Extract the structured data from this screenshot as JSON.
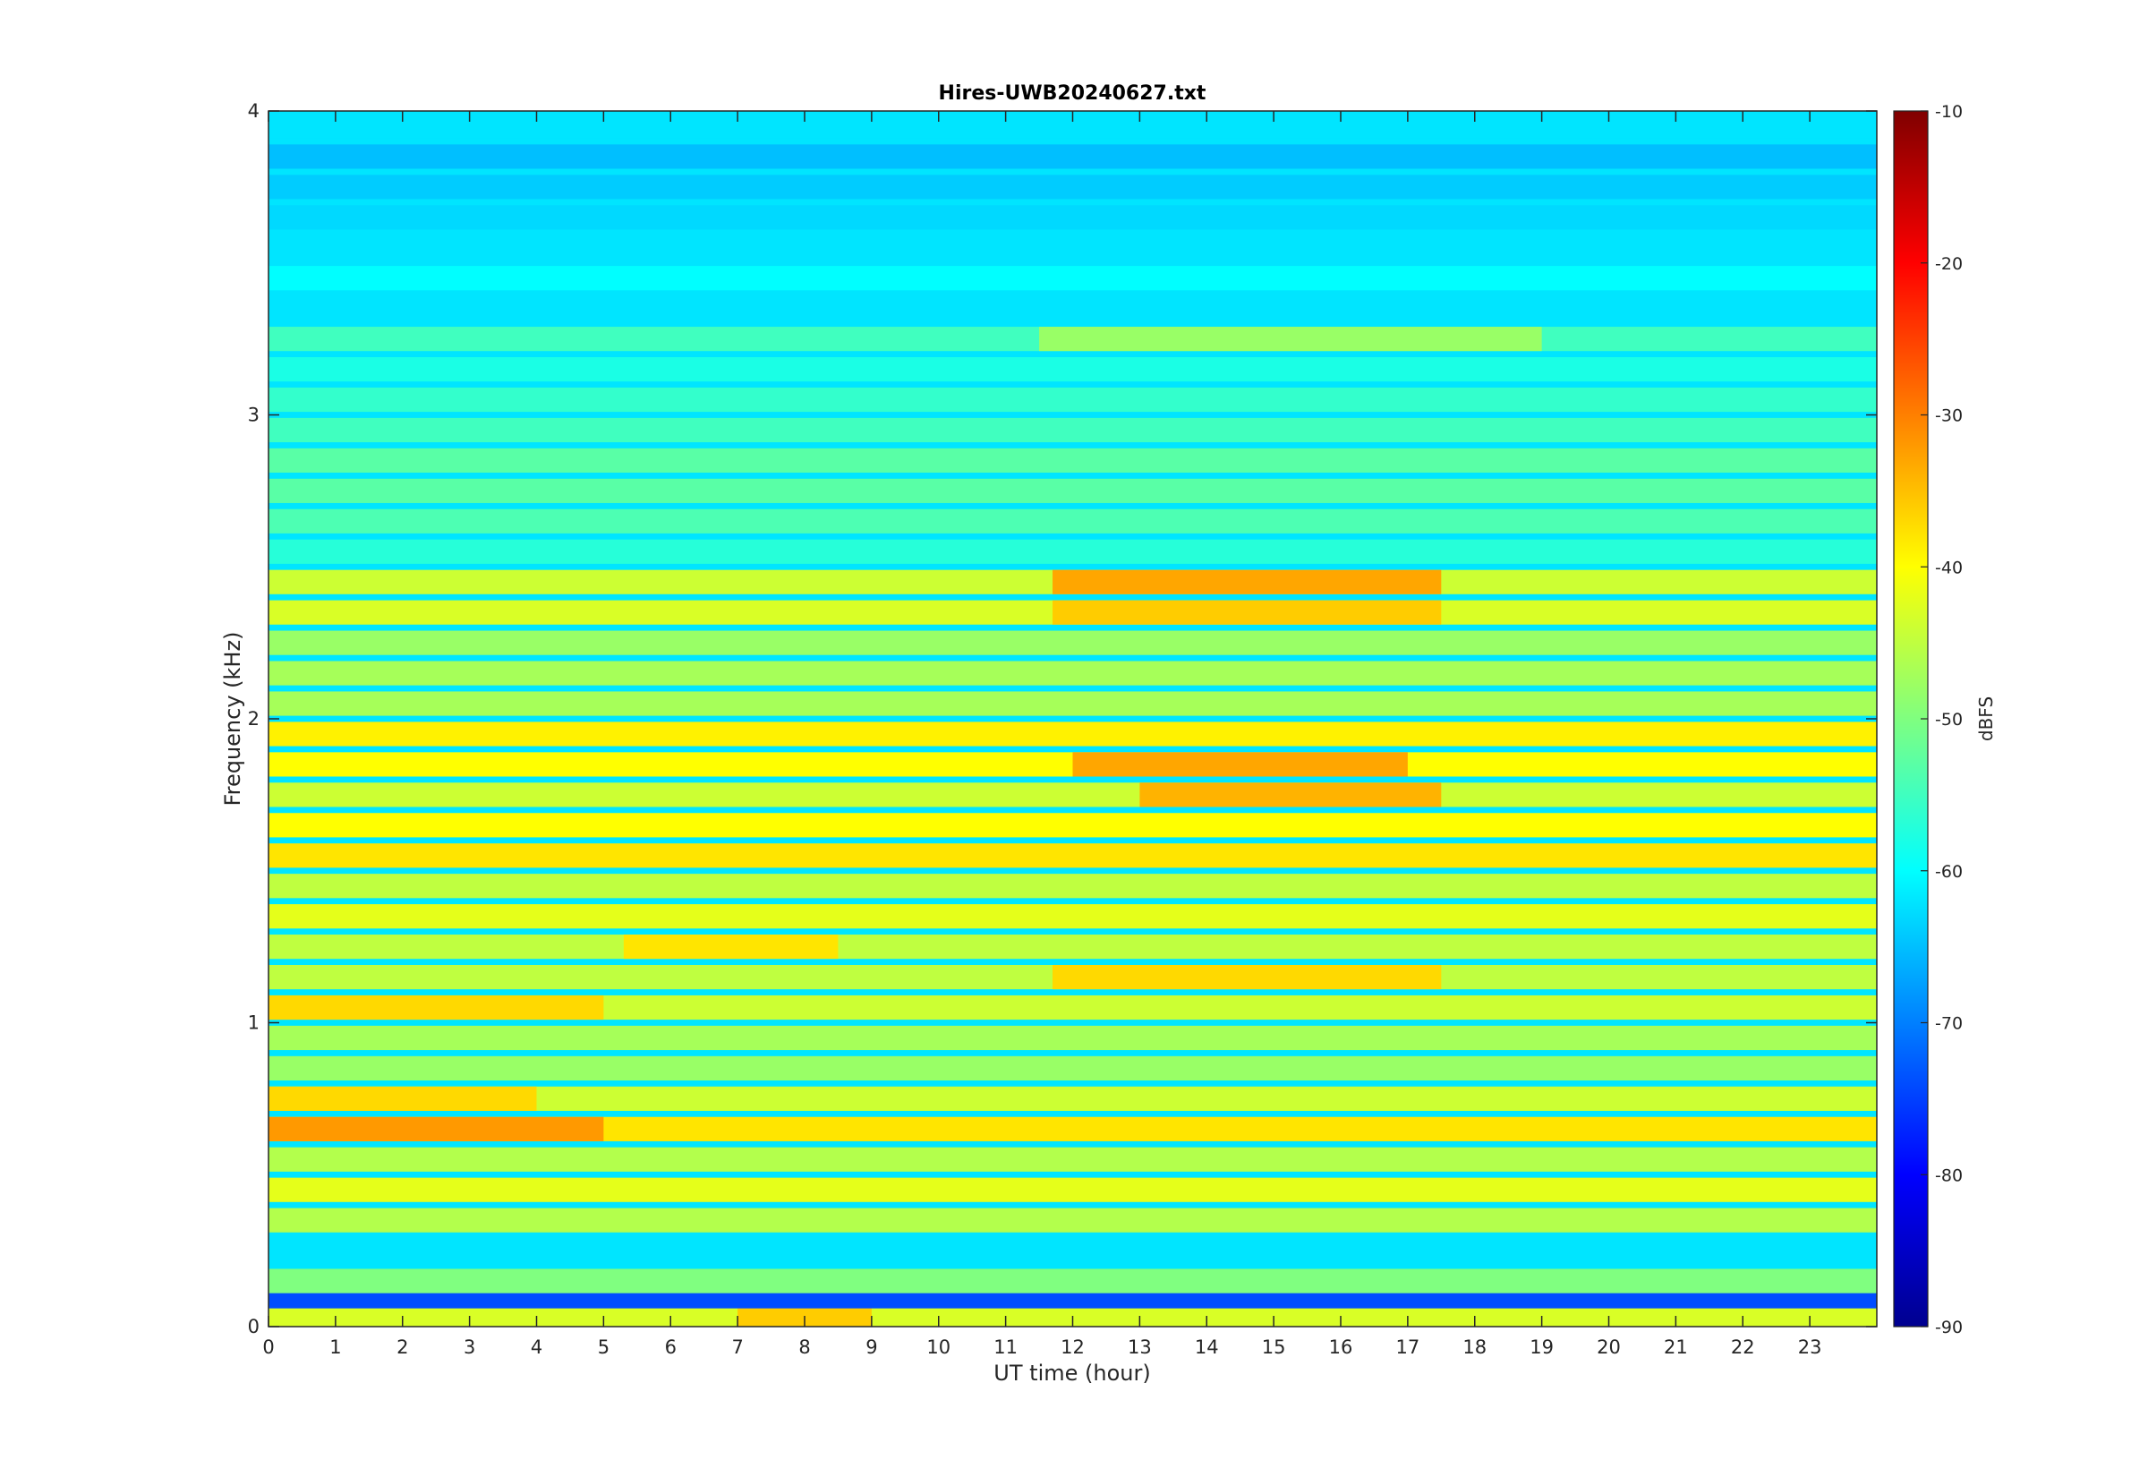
{
  "chart_data": {
    "type": "heatmap",
    "title": "Hires-UWB20240627.txt",
    "xlabel": "UT time (hour)",
    "ylabel": "Frequency (kHz)",
    "xlim": [
      0,
      24
    ],
    "ylim": [
      0,
      4
    ],
    "x_ticks": [
      "0",
      "1",
      "2",
      "3",
      "4",
      "5",
      "6",
      "7",
      "8",
      "9",
      "10",
      "11",
      "12",
      "13",
      "14",
      "15",
      "16",
      "17",
      "18",
      "19",
      "20",
      "21",
      "22",
      "23"
    ],
    "y_ticks": [
      "0",
      "1",
      "2",
      "3",
      "4"
    ],
    "colorbar": {
      "label": "dBFS",
      "range": [
        -90,
        -10
      ],
      "ticks": [
        "-10",
        "-20",
        "-30",
        "-40",
        "-50",
        "-60",
        "-70",
        "-80",
        "-90"
      ],
      "colormap": "jet"
    },
    "bands": [
      {
        "freq_khz": 0.04,
        "level_dbfs": -43,
        "segments": [
          {
            "t0": 7,
            "t1": 9,
            "level_dbfs": -36
          }
        ]
      },
      {
        "freq_khz": 0.1,
        "level_dbfs": -74
      },
      {
        "freq_khz": 0.15,
        "level_dbfs": -50
      },
      {
        "freq_khz": 0.35,
        "level_dbfs": -46
      },
      {
        "freq_khz": 0.45,
        "level_dbfs": -42
      },
      {
        "freq_khz": 0.55,
        "level_dbfs": -46
      },
      {
        "freq_khz": 0.65,
        "level_dbfs": -38,
        "segments": [
          {
            "t0": 0,
            "t1": 5,
            "level_dbfs": -32
          }
        ]
      },
      {
        "freq_khz": 0.75,
        "level_dbfs": -44,
        "segments": [
          {
            "t0": 0,
            "t1": 4,
            "level_dbfs": -37
          }
        ]
      },
      {
        "freq_khz": 0.85,
        "level_dbfs": -48
      },
      {
        "freq_khz": 0.95,
        "level_dbfs": -47
      },
      {
        "freq_khz": 1.05,
        "level_dbfs": -44,
        "segments": [
          {
            "t0": 0,
            "t1": 5,
            "level_dbfs": -37
          }
        ]
      },
      {
        "freq_khz": 1.15,
        "level_dbfs": -45,
        "segments": [
          {
            "t0": 11.7,
            "t1": 17.5,
            "level_dbfs": -37
          }
        ]
      },
      {
        "freq_khz": 1.25,
        "level_dbfs": -45,
        "segments": [
          {
            "t0": 5.3,
            "t1": 8.5,
            "level_dbfs": -38
          }
        ]
      },
      {
        "freq_khz": 1.35,
        "level_dbfs": -42
      },
      {
        "freq_khz": 1.45,
        "level_dbfs": -45
      },
      {
        "freq_khz": 1.55,
        "level_dbfs": -38
      },
      {
        "freq_khz": 1.65,
        "level_dbfs": -40
      },
      {
        "freq_khz": 1.75,
        "level_dbfs": -44,
        "segments": [
          {
            "t0": 13,
            "t1": 17.5,
            "level_dbfs": -34
          }
        ]
      },
      {
        "freq_khz": 1.85,
        "level_dbfs": -40,
        "segments": [
          {
            "t0": 12,
            "t1": 17,
            "level_dbfs": -33
          }
        ]
      },
      {
        "freq_khz": 1.95,
        "level_dbfs": -39
      },
      {
        "freq_khz": 2.05,
        "level_dbfs": -47
      },
      {
        "freq_khz": 2.15,
        "level_dbfs": -47
      },
      {
        "freq_khz": 2.25,
        "level_dbfs": -48
      },
      {
        "freq_khz": 2.35,
        "level_dbfs": -43,
        "segments": [
          {
            "t0": 11.7,
            "t1": 17.5,
            "level_dbfs": -36
          }
        ]
      },
      {
        "freq_khz": 2.45,
        "level_dbfs": -44,
        "segments": [
          {
            "t0": 11.7,
            "t1": 17.5,
            "level_dbfs": -33
          }
        ]
      },
      {
        "freq_khz": 2.55,
        "level_dbfs": -57
      },
      {
        "freq_khz": 2.65,
        "level_dbfs": -54
      },
      {
        "freq_khz": 2.75,
        "level_dbfs": -53
      },
      {
        "freq_khz": 2.85,
        "level_dbfs": -53
      },
      {
        "freq_khz": 2.95,
        "level_dbfs": -55
      },
      {
        "freq_khz": 3.05,
        "level_dbfs": -56
      },
      {
        "freq_khz": 3.15,
        "level_dbfs": -58
      },
      {
        "freq_khz": 3.25,
        "level_dbfs": -55,
        "segments": [
          {
            "t0": 11.5,
            "t1": 19,
            "level_dbfs": -48
          }
        ]
      },
      {
        "freq_khz": 3.35,
        "level_dbfs": -62
      },
      {
        "freq_khz": 3.45,
        "level_dbfs": -60
      },
      {
        "freq_khz": 3.55,
        "level_dbfs": -62
      },
      {
        "freq_khz": 3.65,
        "level_dbfs": -63
      },
      {
        "freq_khz": 3.75,
        "level_dbfs": -64
      },
      {
        "freq_khz": 3.85,
        "level_dbfs": -65
      },
      {
        "freq_khz": 3.95,
        "level_dbfs": -62
      }
    ]
  }
}
